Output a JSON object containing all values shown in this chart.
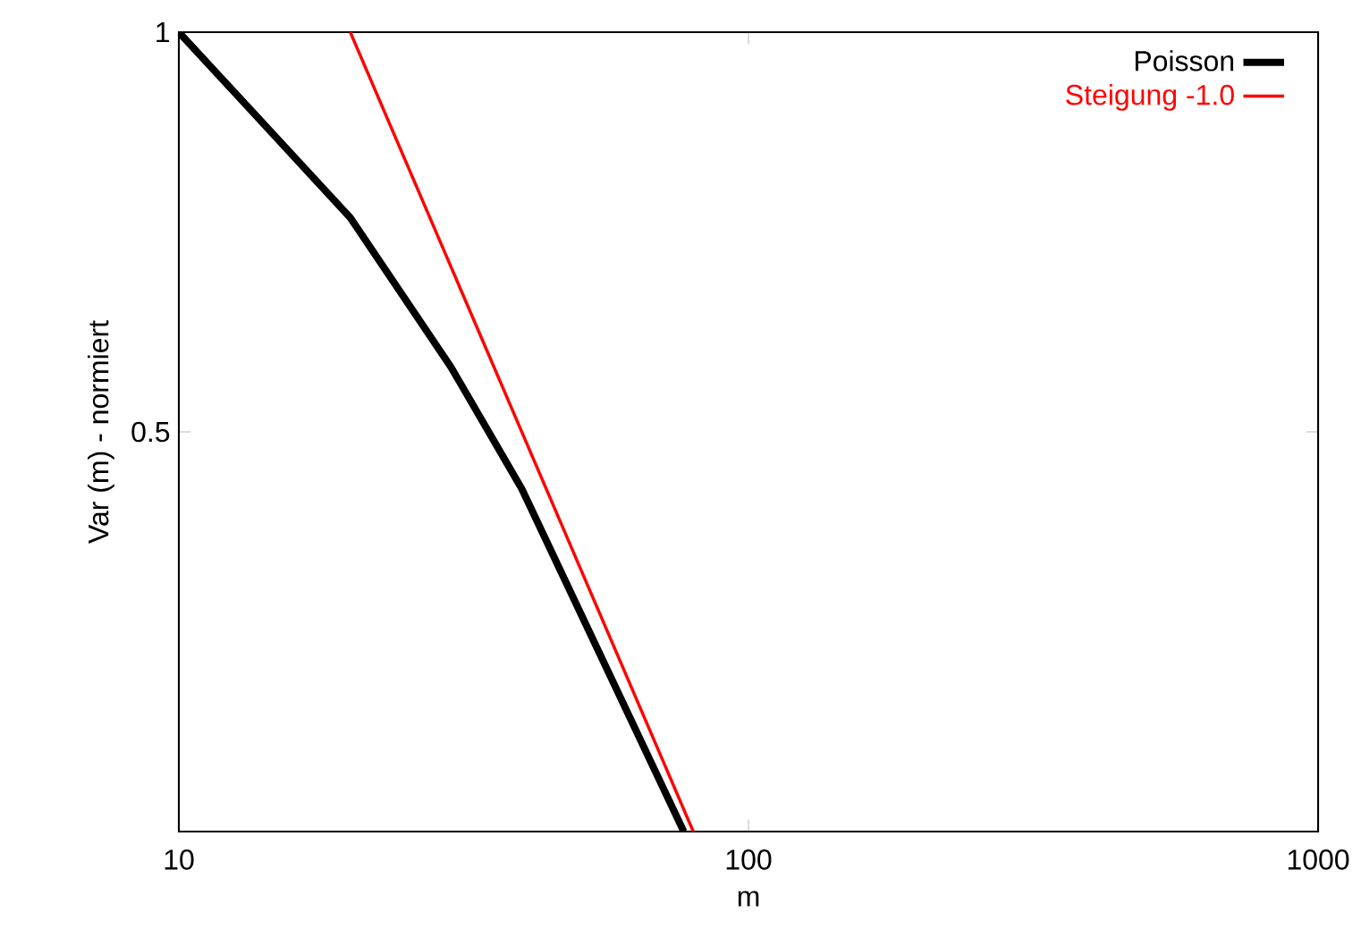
{
  "chart_data": {
    "type": "line",
    "xlabel": "m",
    "ylabel": "Var (m) - normiert",
    "log": "xy",
    "xlim": [
      10,
      1000
    ],
    "ylim": [
      0.25,
      1
    ],
    "xticks": [
      10,
      100,
      1000
    ],
    "yticks": [
      0.5,
      1
    ],
    "legend": "top right",
    "grid": false,
    "marker": "none",
    "line_style": "solid",
    "series": [
      {
        "name": "Poisson",
        "color": "#000000",
        "x": [
          10,
          20,
          30,
          40,
          77
        ],
        "values": [
          1,
          0.725,
          0.56,
          0.453,
          0.25
        ]
      },
      {
        "name": "Steigung -1.0",
        "color": "#ff0000",
        "x": [
          20,
          80
        ],
        "values": [
          1,
          0.25
        ]
      }
    ]
  }
}
